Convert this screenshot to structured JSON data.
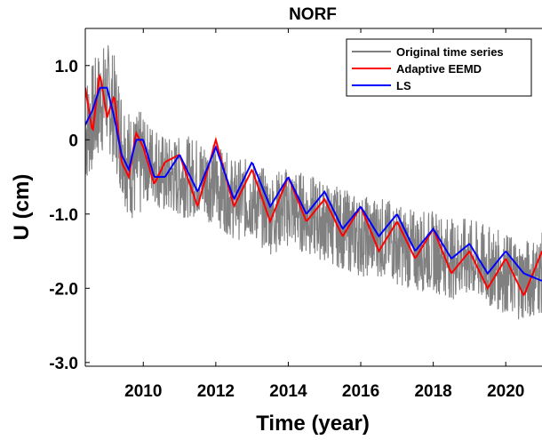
{
  "chart_data": {
    "type": "line",
    "title": "NORF",
    "xlabel": "Time (year)",
    "ylabel": "U (cm)",
    "xlim": [
      2008.4,
      2021.0
    ],
    "ylim": [
      -3.05,
      1.5
    ],
    "x_ticks": [
      2010,
      2012,
      2014,
      2016,
      2018,
      2020
    ],
    "x_tick_labels": [
      "2010",
      "2012",
      "2014",
      "2016",
      "2018",
      "2020"
    ],
    "y_ticks": [
      1.0,
      0,
      -1.0,
      -2.0,
      -3.0
    ],
    "y_tick_labels": [
      "1.0",
      "0",
      "-1.0",
      "-2.0",
      "-3.0"
    ],
    "grid": false,
    "legend_position": "top-right",
    "series": [
      {
        "name": "Original time series",
        "color": "#808080",
        "style": "noisy daily series around the LS trend, about ±0.5 cm scatter",
        "x": [
          2008.4,
          2008.6,
          2008.8,
          2009.0,
          2009.2,
          2009.4,
          2009.6,
          2009.8,
          2010.0,
          2010.3,
          2010.6,
          2011.0,
          2011.5,
          2012.0,
          2012.5,
          2013.0,
          2013.5,
          2014.0,
          2014.5,
          2015.0,
          2015.5,
          2016.0,
          2016.5,
          2017.0,
          2017.5,
          2018.0,
          2018.5,
          2019.0,
          2019.5,
          2020.0,
          2020.5,
          2021.0
        ],
        "y": [
          0.1,
          0.3,
          0.5,
          0.6,
          0.4,
          0.0,
          -0.3,
          -0.4,
          -0.3,
          -0.3,
          -0.5,
          -0.5,
          -0.5,
          -0.6,
          -0.8,
          -0.8,
          -1.0,
          -0.9,
          -1.0,
          -1.1,
          -1.2,
          -1.3,
          -1.3,
          -1.4,
          -1.5,
          -1.5,
          -1.6,
          -1.6,
          -1.7,
          -1.8,
          -1.9,
          -1.8
        ]
      },
      {
        "name": "Adaptive EEMD",
        "color": "#ff0000",
        "x": [
          2008.4,
          2008.6,
          2008.8,
          2009.0,
          2009.2,
          2009.4,
          2009.6,
          2009.8,
          2010.0,
          2010.3,
          2010.6,
          2011.0,
          2011.5,
          2012.0,
          2012.5,
          2013.0,
          2013.5,
          2014.0,
          2014.5,
          2015.0,
          2015.5,
          2016.0,
          2016.5,
          2017.0,
          2017.5,
          2018.0,
          2018.5,
          2019.0,
          2019.5,
          2020.0,
          2020.5,
          2021.0
        ],
        "y": [
          0.7,
          0.1,
          0.9,
          0.3,
          0.6,
          -0.3,
          -0.5,
          0.1,
          -0.1,
          -0.6,
          -0.3,
          -0.2,
          -0.9,
          0.0,
          -0.9,
          -0.4,
          -1.1,
          -0.5,
          -1.1,
          -0.8,
          -1.3,
          -0.9,
          -1.5,
          -1.1,
          -1.6,
          -1.2,
          -1.8,
          -1.5,
          -2.0,
          -1.6,
          -2.1,
          -1.5
        ]
      },
      {
        "name": "LS",
        "color": "#0000ff",
        "x": [
          2008.4,
          2008.6,
          2008.8,
          2009.0,
          2009.2,
          2009.4,
          2009.6,
          2009.8,
          2010.0,
          2010.3,
          2010.6,
          2011.0,
          2011.5,
          2012.0,
          2012.5,
          2013.0,
          2013.5,
          2014.0,
          2014.5,
          2015.0,
          2015.5,
          2016.0,
          2016.5,
          2017.0,
          2017.5,
          2018.0,
          2018.5,
          2019.0,
          2019.5,
          2020.0,
          2020.5,
          2021.0
        ],
        "y": [
          0.2,
          0.4,
          0.7,
          0.7,
          0.3,
          -0.2,
          -0.4,
          0.0,
          0.0,
          -0.5,
          -0.5,
          -0.2,
          -0.7,
          -0.1,
          -0.8,
          -0.3,
          -0.9,
          -0.5,
          -1.0,
          -0.7,
          -1.2,
          -0.9,
          -1.3,
          -1.0,
          -1.5,
          -1.2,
          -1.6,
          -1.4,
          -1.8,
          -1.5,
          -1.8,
          -1.9
        ]
      }
    ]
  }
}
